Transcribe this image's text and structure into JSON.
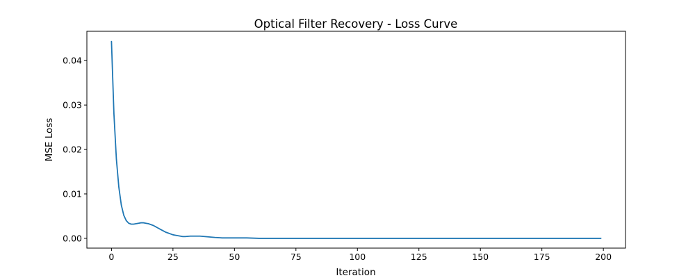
{
  "chart_data": {
    "type": "line",
    "title": "Optical Filter Recovery - Loss Curve",
    "xlabel": "Iteration",
    "ylabel": "MSE Loss",
    "xlim": [
      -10,
      209
    ],
    "ylim": [
      -0.0022,
      0.0466
    ],
    "xticks": [
      0,
      25,
      50,
      75,
      100,
      125,
      150,
      175,
      200
    ],
    "yticks": [
      0.0,
      0.01,
      0.02,
      0.03,
      0.04
    ],
    "xtick_labels": [
      "0",
      "25",
      "50",
      "75",
      "100",
      "125",
      "150",
      "175",
      "200"
    ],
    "ytick_labels": [
      "0.00",
      "0.01",
      "0.02",
      "0.03",
      "0.04"
    ],
    "grid": false,
    "legend": "none",
    "line_color": "#1f77b4",
    "series": [
      {
        "x": [
          0,
          1,
          2,
          3,
          4,
          5,
          6,
          7,
          8,
          9,
          10,
          11,
          12,
          13,
          14,
          15,
          16,
          17,
          18,
          19,
          20,
          21,
          22,
          23,
          24,
          25,
          26,
          27,
          28,
          29,
          30,
          32,
          34,
          36,
          38,
          40,
          42,
          45,
          50,
          55,
          60,
          70,
          80,
          100,
          120,
          140,
          160,
          180,
          199
        ],
        "y": [
          0.0443,
          0.028,
          0.0178,
          0.0115,
          0.0075,
          0.0052,
          0.004,
          0.0034,
          0.0032,
          0.0032,
          0.0033,
          0.0034,
          0.0035,
          0.0035,
          0.0034,
          0.0033,
          0.0031,
          0.0029,
          0.0026,
          0.0023,
          0.002,
          0.0017,
          0.0014,
          0.0012,
          0.001,
          0.0008,
          0.0007,
          0.0006,
          0.0005,
          0.0004,
          0.0004,
          0.0005,
          0.0005,
          0.0005,
          0.0004,
          0.0003,
          0.0002,
          0.0001,
          0.0001,
          0.0001,
          0.0,
          0.0,
          0.0,
          0.0,
          0.0,
          0.0,
          0.0,
          0.0,
          0.0
        ]
      }
    ]
  }
}
